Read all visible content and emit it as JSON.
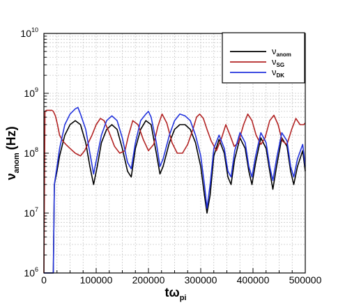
{
  "chart_data": {
    "type": "line",
    "title": "",
    "xlabel": "tω",
    "xlabel_sub": "pi",
    "ylabel": "ν",
    "ylabel_sub": "anom",
    "ylabel_unit": "(Hz)",
    "x_scale": "linear",
    "y_scale": "log",
    "xlim": [
      0,
      500000
    ],
    "ylim": [
      1000000,
      10000000000
    ],
    "x_ticks": [
      0,
      100000,
      200000,
      300000,
      400000,
      500000
    ],
    "x_tick_labels": [
      "0",
      "100000",
      "200000",
      "300000",
      "400000",
      "500000"
    ],
    "y_ticks": [
      1000000,
      10000000,
      100000000,
      1000000000,
      10000000000
    ],
    "y_tick_base": [
      "10",
      "10",
      "10",
      "10",
      "10"
    ],
    "y_tick_exp": [
      "6",
      "7",
      "8",
      "9",
      "10"
    ],
    "grid": true,
    "legend_position": "top-right",
    "series": [
      {
        "name": "ν",
        "name_sub": "anom",
        "color": "#000000",
        "x": [
          0,
          15000,
          18000,
          20000,
          25000,
          30000,
          40000,
          50000,
          60000,
          70000,
          80000,
          88000,
          95000,
          102000,
          110000,
          120000,
          130000,
          140000,
          150000,
          160000,
          167000,
          175000,
          185000,
          195000,
          205000,
          215000,
          222000,
          228000,
          240000,
          250000,
          260000,
          270000,
          280000,
          290000,
          300000,
          307000,
          312000,
          318000,
          325000,
          335000,
          345000,
          352000,
          358000,
          365000,
          375000,
          385000,
          392000,
          398000,
          405000,
          415000,
          425000,
          432000,
          438000,
          445000,
          455000,
          465000,
          472000,
          478000,
          485000,
          495000,
          500000
        ],
        "y": [
          1000000,
          1000000,
          1000000,
          30000000,
          50000000,
          90000000,
          200000000,
          300000000,
          350000000,
          300000000,
          150000000,
          60000000,
          30000000,
          60000000,
          150000000,
          250000000,
          300000000,
          250000000,
          120000000,
          50000000,
          40000000,
          120000000,
          250000000,
          350000000,
          300000000,
          100000000,
          45000000,
          60000000,
          150000000,
          250000000,
          300000000,
          300000000,
          250000000,
          150000000,
          60000000,
          20000000,
          10000000,
          20000000,
          90000000,
          170000000,
          100000000,
          40000000,
          30000000,
          80000000,
          180000000,
          120000000,
          50000000,
          30000000,
          70000000,
          180000000,
          120000000,
          50000000,
          25000000,
          60000000,
          180000000,
          130000000,
          50000000,
          30000000,
          60000000,
          110000000,
          50000000
        ]
      },
      {
        "name": "ν",
        "name_sub": "SG",
        "color": "#b22222",
        "x": [
          0,
          2000,
          5000,
          10000,
          15000,
          18000,
          22000,
          26000,
          30000,
          36000,
          42000,
          50000,
          60000,
          70000,
          78000,
          85000,
          92000,
          100000,
          108000,
          115000,
          125000,
          135000,
          145000,
          155000,
          162000,
          170000,
          180000,
          190000,
          200000,
          210000,
          218000,
          226000,
          235000,
          245000,
          255000,
          265000,
          275000,
          285000,
          292000,
          298000,
          305000,
          312000,
          320000,
          330000,
          340000,
          348000,
          356000,
          364000,
          372000,
          382000,
          390000,
          398000,
          406000,
          415000,
          423000,
          432000,
          440000,
          448000,
          456000,
          465000,
          474000,
          482000,
          490000,
          497000,
          500000
        ],
        "y": [
          1000000,
          500000000,
          520000000,
          520000000,
          520000000,
          500000000,
          420000000,
          300000000,
          200000000,
          160000000,
          140000000,
          120000000,
          100000000,
          90000000,
          110000000,
          150000000,
          200000000,
          300000000,
          380000000,
          350000000,
          220000000,
          130000000,
          100000000,
          110000000,
          200000000,
          350000000,
          300000000,
          170000000,
          110000000,
          140000000,
          280000000,
          450000000,
          320000000,
          150000000,
          100000000,
          100000000,
          140000000,
          250000000,
          400000000,
          450000000,
          380000000,
          250000000,
          160000000,
          110000000,
          180000000,
          300000000,
          200000000,
          130000000,
          150000000,
          300000000,
          450000000,
          350000000,
          200000000,
          140000000,
          180000000,
          350000000,
          430000000,
          300000000,
          160000000,
          140000000,
          250000000,
          380000000,
          300000000,
          300000000,
          320000000
        ]
      },
      {
        "name": "ν",
        "name_sub": "DK",
        "color": "#2233dd",
        "x": [
          0,
          15000,
          18000,
          20000,
          25000,
          30000,
          40000,
          50000,
          60000,
          65000,
          70000,
          80000,
          88000,
          95000,
          102000,
          110000,
          120000,
          130000,
          140000,
          150000,
          160000,
          167000,
          175000,
          185000,
          195000,
          200000,
          205000,
          215000,
          222000,
          228000,
          240000,
          250000,
          260000,
          270000,
          280000,
          290000,
          300000,
          307000,
          312000,
          318000,
          325000,
          335000,
          345000,
          352000,
          358000,
          365000,
          375000,
          385000,
          392000,
          398000,
          405000,
          415000,
          425000,
          432000,
          438000,
          445000,
          455000,
          465000,
          472000,
          478000,
          485000,
          495000,
          500000
        ],
        "y": [
          1000000,
          1000000,
          1000000,
          30000000,
          60000000,
          120000000,
          300000000,
          450000000,
          550000000,
          580000000,
          450000000,
          250000000,
          100000000,
          45000000,
          90000000,
          200000000,
          350000000,
          420000000,
          350000000,
          180000000,
          70000000,
          55000000,
          150000000,
          350000000,
          450000000,
          500000000,
          400000000,
          150000000,
          60000000,
          80000000,
          200000000,
          350000000,
          450000000,
          420000000,
          350000000,
          200000000,
          90000000,
          30000000,
          12000000,
          30000000,
          120000000,
          200000000,
          120000000,
          50000000,
          40000000,
          110000000,
          220000000,
          150000000,
          60000000,
          40000000,
          90000000,
          220000000,
          150000000,
          60000000,
          35000000,
          80000000,
          220000000,
          160000000,
          60000000,
          40000000,
          80000000,
          140000000,
          60000000
        ]
      }
    ]
  }
}
